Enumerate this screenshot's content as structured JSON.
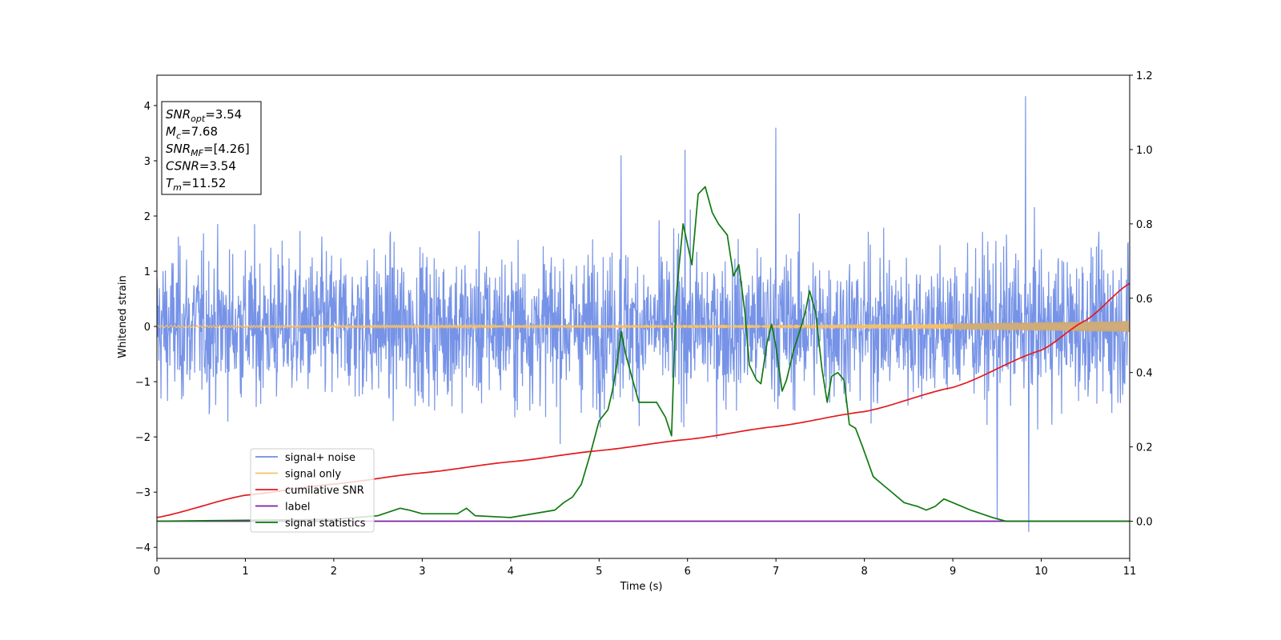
{
  "chart_data": {
    "type": "line",
    "xlabel": "Time (s)",
    "ylabel": "Whitened strain",
    "xlim": [
      0,
      11
    ],
    "ylim_left": [
      -4.2,
      4.55
    ],
    "ylim_right": [
      -0.1,
      1.2
    ],
    "grid": false,
    "legend_position": "lower-left",
    "x_ticks": [
      "0",
      "1",
      "2",
      "3",
      "4",
      "5",
      "6",
      "7",
      "8",
      "9",
      "10",
      "11"
    ],
    "y_ticks_left": [
      "−4",
      "−3",
      "−2",
      "−1",
      "0",
      "1",
      "2",
      "3",
      "4"
    ],
    "y_ticks_right": [
      "0.0",
      "0.2",
      "0.4",
      "0.6",
      "0.8",
      "1.0",
      "1.2"
    ],
    "info_box": [
      {
        "base": "SNR",
        "sub": "opt",
        "rest": "=3.54"
      },
      {
        "base": "M",
        "sub": "c",
        "rest": "=7.68"
      },
      {
        "base": "SNR",
        "sub": "MF",
        "rest": "=[4.26]"
      },
      {
        "base": "CSNR",
        "sub": "",
        "rest": "=3.54"
      },
      {
        "base": "T",
        "sub": "m",
        "rest": "=11.52"
      }
    ],
    "series": [
      {
        "name": "signal+ noise",
        "color": "#6f8de6",
        "axis": "left",
        "description_values": {
          "noise_band": [
            -2.2,
            2.9
          ],
          "peak_max": 4.17,
          "peak_min": -3.72
        }
      },
      {
        "name": "signal only",
        "color": "#f5c06a",
        "axis": "left",
        "amplitude_start": 0.02,
        "amplitude_end": 0.1
      },
      {
        "name": "cumilative SNR",
        "color": "#e31a1c",
        "axis": "right",
        "x": [
          0,
          1,
          2,
          3,
          4,
          5,
          6,
          7,
          8,
          9,
          10,
          10.5,
          11
        ],
        "values": [
          0.01,
          0.07,
          0.1,
          0.13,
          0.16,
          0.19,
          0.22,
          0.255,
          0.295,
          0.36,
          0.46,
          0.54,
          0.64
        ]
      },
      {
        "name": "label",
        "color": "#7b1fa2",
        "axis": "right",
        "x": [
          0,
          11
        ],
        "values": [
          0.0,
          0.0
        ]
      },
      {
        "name": "signal statistics",
        "color": "#117a11",
        "axis": "right",
        "x": [
          0,
          2,
          2.5,
          2.75,
          2.85,
          3.0,
          3.4,
          3.5,
          3.6,
          4.0,
          4.5,
          4.6,
          4.7,
          4.8,
          4.9,
          5.0,
          5.1,
          5.15,
          5.2,
          5.25,
          5.3,
          5.38,
          5.45,
          5.55,
          5.65,
          5.75,
          5.82,
          5.87,
          5.95,
          6.05,
          6.12,
          6.2,
          6.28,
          6.35,
          6.45,
          6.52,
          6.58,
          6.65,
          6.7,
          6.78,
          6.83,
          6.9,
          6.95,
          7.0,
          7.07,
          7.12,
          7.2,
          7.28,
          7.33,
          7.38,
          7.45,
          7.52,
          7.58,
          7.63,
          7.7,
          7.77,
          7.83,
          7.9,
          7.98,
          8.1,
          8.2,
          8.3,
          8.45,
          8.6,
          8.7,
          8.8,
          8.9,
          9.0,
          9.2,
          9.45,
          9.6,
          10.0,
          11.0
        ],
        "values": [
          0.0,
          0.005,
          0.015,
          0.035,
          0.03,
          0.02,
          0.02,
          0.035,
          0.015,
          0.01,
          0.03,
          0.05,
          0.065,
          0.1,
          0.18,
          0.27,
          0.3,
          0.35,
          0.42,
          0.51,
          0.45,
          0.38,
          0.32,
          0.32,
          0.32,
          0.28,
          0.23,
          0.6,
          0.8,
          0.69,
          0.88,
          0.9,
          0.83,
          0.8,
          0.77,
          0.66,
          0.69,
          0.56,
          0.42,
          0.38,
          0.37,
          0.48,
          0.53,
          0.47,
          0.35,
          0.38,
          0.46,
          0.52,
          0.56,
          0.62,
          0.56,
          0.41,
          0.32,
          0.39,
          0.4,
          0.38,
          0.26,
          0.25,
          0.2,
          0.12,
          0.1,
          0.08,
          0.05,
          0.04,
          0.03,
          0.04,
          0.06,
          0.05,
          0.03,
          0.01,
          0.0,
          0.0,
          0.0
        ]
      }
    ]
  }
}
